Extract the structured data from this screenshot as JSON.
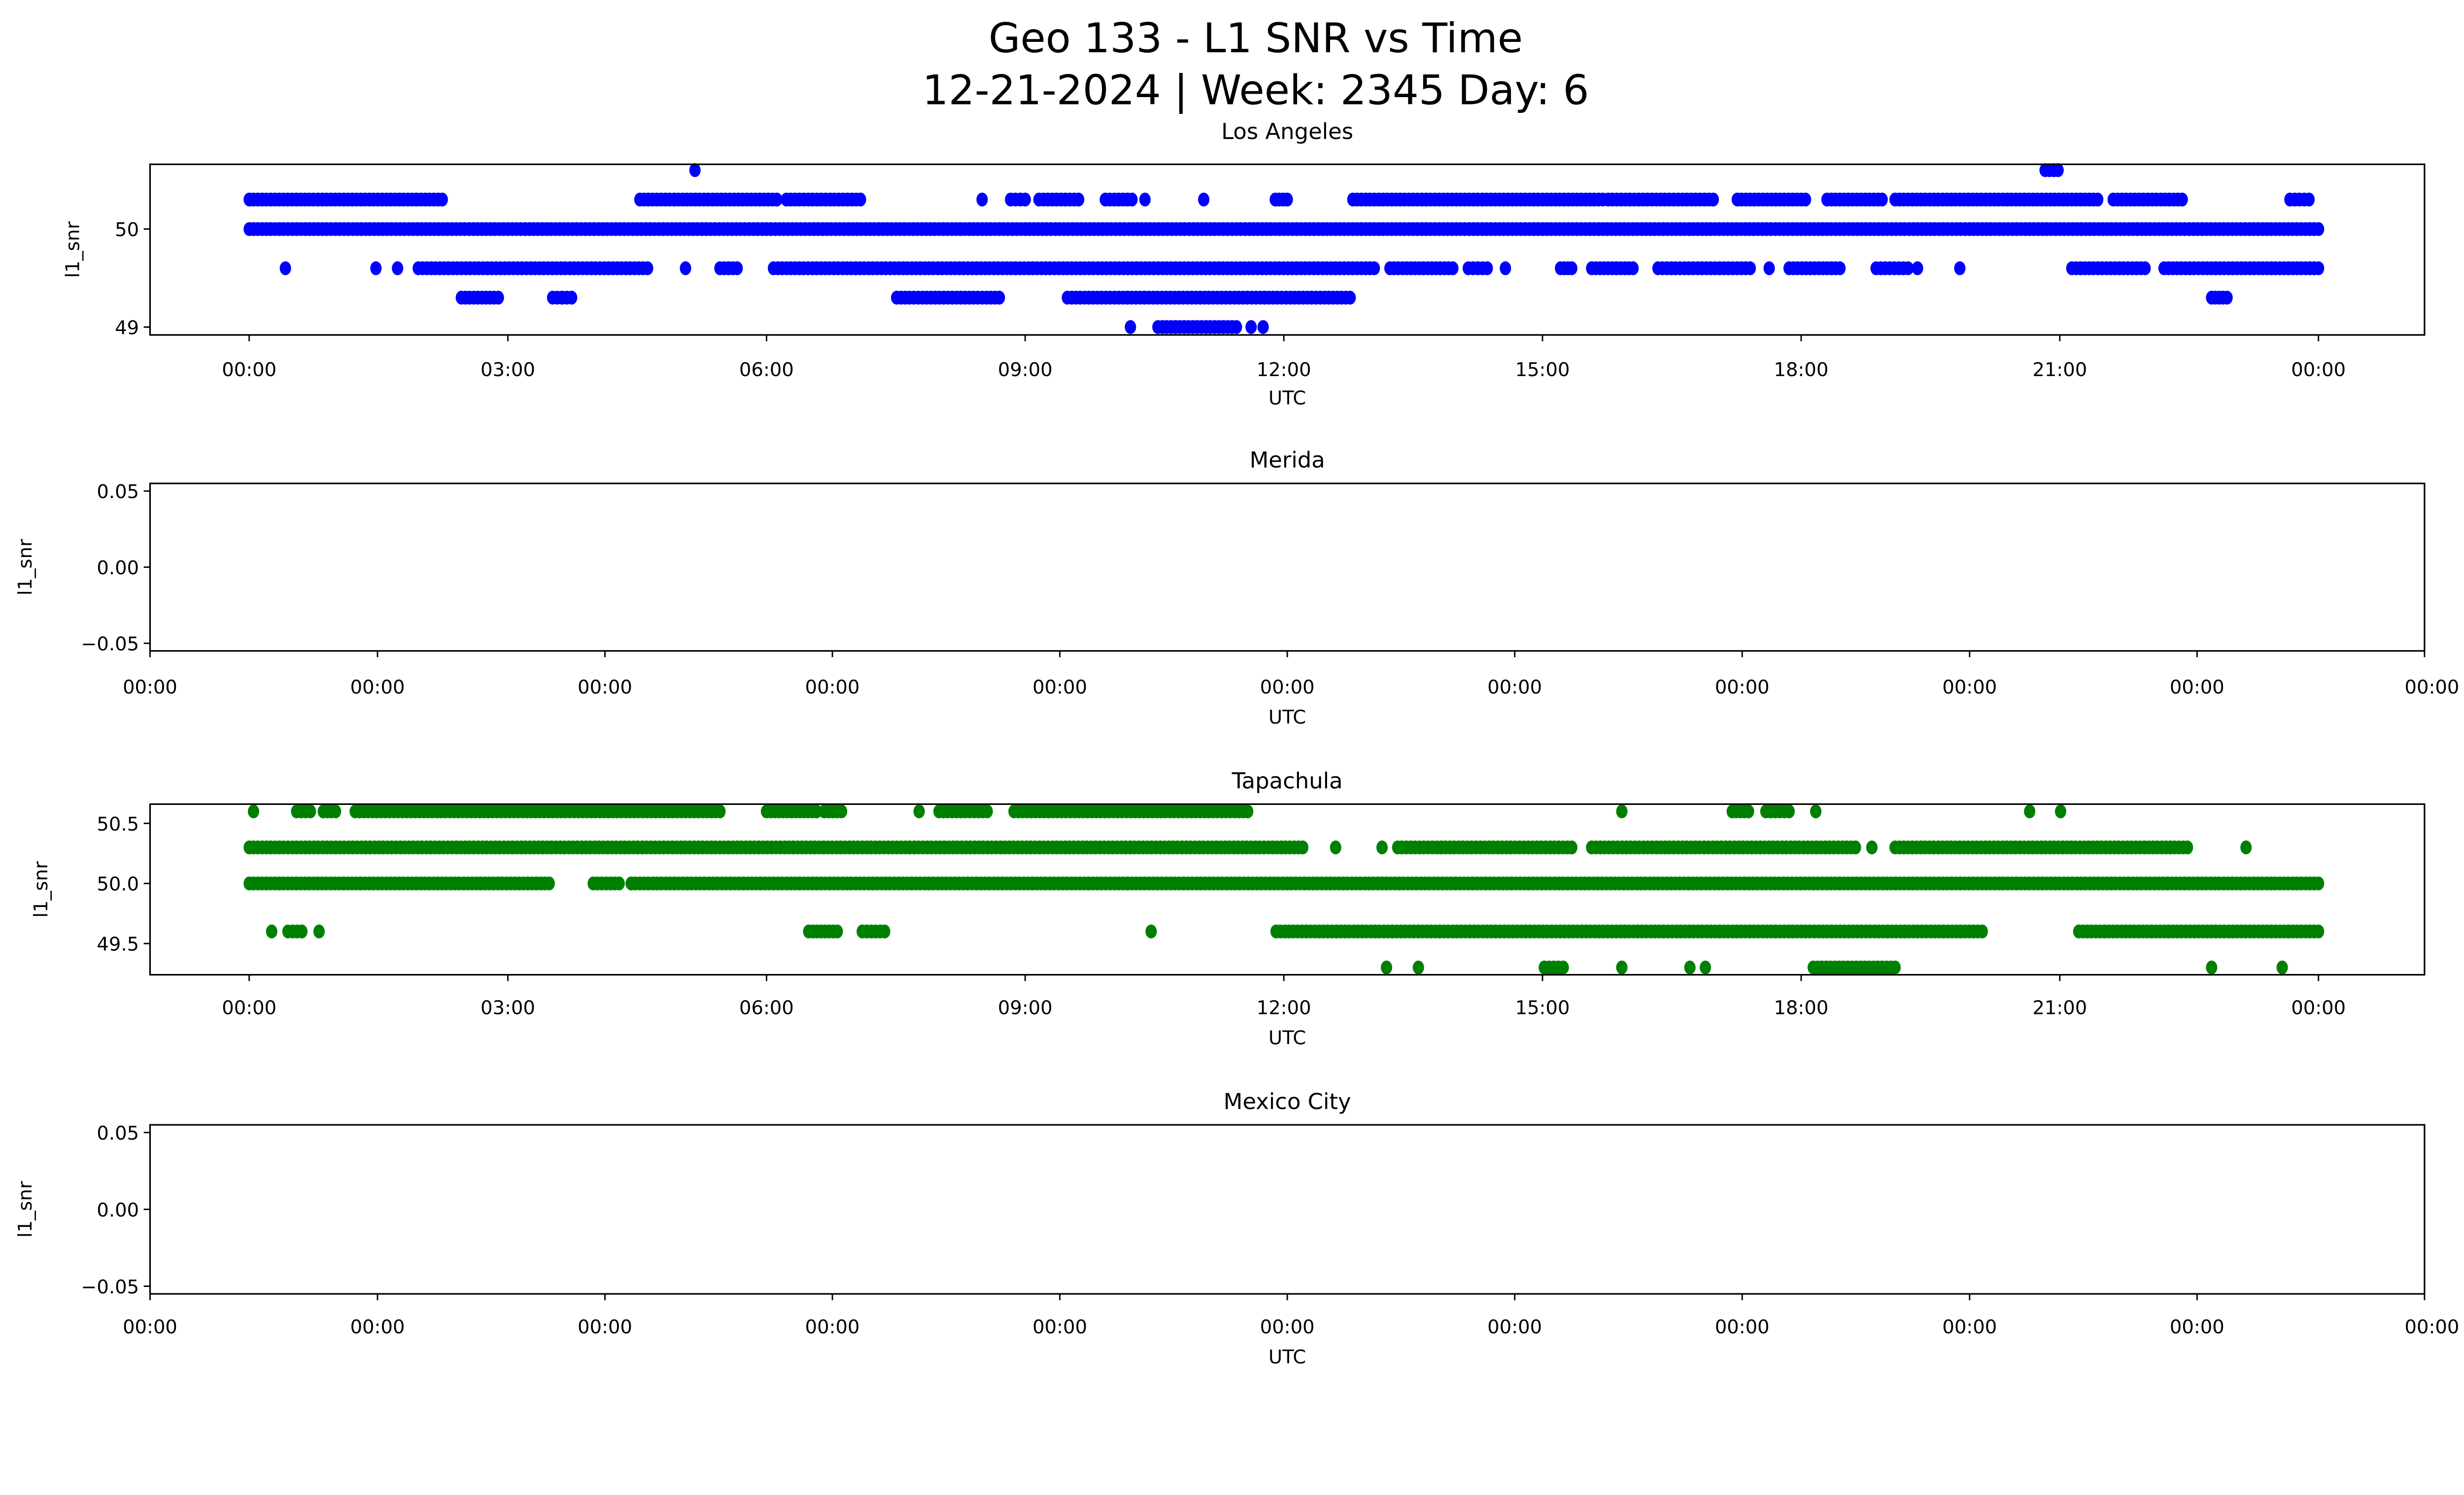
{
  "chart_data": {
    "type": "scatter",
    "title_line1": "Geo 133 - L1 SNR vs Time",
    "title_line2": "12-21-2024 | Week: 2345 Day: 6",
    "x_unit": "hours UTC",
    "subplots": [
      {
        "title": "Los Angeles",
        "xlabel": "UTC",
        "ylabel": "l1_snr",
        "color": "#0000ff",
        "xlim": [
          -1.15,
          25.23
        ],
        "ylim": [
          48.92,
          50.66
        ],
        "xticks": [
          0,
          3,
          6,
          9,
          12,
          15,
          18,
          21,
          24
        ],
        "xtick_labels": [
          "00:00",
          "03:00",
          "06:00",
          "09:00",
          "12:00",
          "15:00",
          "18:00",
          "21:00",
          "00:00"
        ],
        "yticks": [
          49,
          50
        ],
        "ytick_labels": [
          "49",
          "50"
        ],
        "levels": [
          {
            "y": 50.6,
            "runs": [
              [
                5.17,
                5.17
              ],
              [
                20.83,
                20.98
              ]
            ]
          },
          {
            "y": 50.3,
            "runs": [
              [
                0,
                2.24
              ],
              [
                4.53,
                6.12
              ],
              [
                6.23,
                7.09
              ],
              [
                8.5,
                8.5
              ],
              [
                8.83,
                9.0
              ],
              [
                9.16,
                9.62
              ],
              [
                9.93,
                10.24
              ],
              [
                10.39,
                10.39
              ],
              [
                11.07,
                11.07
              ],
              [
                11.9,
                12.04
              ],
              [
                12.8,
                15.7
              ],
              [
                15.76,
                16.98
              ],
              [
                17.26,
                18.05
              ],
              [
                18.3,
                18.94
              ],
              [
                19.09,
                21.44
              ],
              [
                21.62,
                22.42
              ],
              [
                23.67,
                23.89
              ]
            ]
          },
          {
            "y": 50.0,
            "runs": [
              [
                0,
                24
              ]
            ]
          },
          {
            "y": 49.6,
            "runs": [
              [
                0.42,
                0.42
              ],
              [
                1.47,
                1.47
              ],
              [
                1.72,
                1.72
              ],
              [
                1.96,
                4.62
              ],
              [
                5.06,
                5.06
              ],
              [
                5.46,
                5.66
              ],
              [
                6.08,
                13.05
              ],
              [
                13.23,
                13.96
              ],
              [
                14.14,
                14.36
              ],
              [
                14.57,
                14.57
              ],
              [
                15.21,
                15.34
              ],
              [
                15.57,
                16.05
              ],
              [
                16.34,
                17.41
              ],
              [
                17.63,
                17.63
              ],
              [
                17.86,
                18.45
              ],
              [
                18.87,
                19.24
              ],
              [
                19.35,
                19.35
              ],
              [
                19.84,
                19.84
              ],
              [
                21.14,
                21.99
              ],
              [
                22.21,
                24
              ]
            ]
          },
          {
            "y": 49.3,
            "runs": [
              [
                2.46,
                2.89
              ],
              [
                3.52,
                3.74
              ],
              [
                7.51,
                8.7
              ],
              [
                9.49,
                12.77
              ],
              [
                22.76,
                22.94
              ]
            ]
          },
          {
            "y": 49.0,
            "runs": [
              [
                10.22,
                10.22
              ],
              [
                10.54,
                11.45
              ],
              [
                11.62,
                11.62
              ],
              [
                11.76,
                11.76
              ]
            ]
          }
        ]
      },
      {
        "title": "Merida",
        "xlabel": "UTC",
        "ylabel": "l1_snr",
        "color": "#0000ff",
        "empty": true,
        "ylim": [
          -0.055,
          0.055
        ],
        "xtick_labels": [
          "00:00",
          "00:00",
          "00:00",
          "00:00",
          "00:00",
          "00:00",
          "00:00",
          "00:00",
          "00:00",
          "00:00",
          "00:00"
        ],
        "yticks": [
          0.05,
          0.0,
          -0.05
        ],
        "ytick_labels": [
          "0.05",
          "0.00",
          "−0.05"
        ],
        "levels": []
      },
      {
        "title": "Tapachula",
        "xlabel": "UTC",
        "ylabel": "l1_snr",
        "color": "#008000",
        "xlim": [
          -1.15,
          25.23
        ],
        "ylim": [
          49.24,
          50.66
        ],
        "xticks": [
          0,
          3,
          6,
          9,
          12,
          15,
          18,
          21,
          24
        ],
        "xtick_labels": [
          "00:00",
          "03:00",
          "06:00",
          "09:00",
          "12:00",
          "15:00",
          "18:00",
          "21:00",
          "00:00"
        ],
        "yticks": [
          49.5,
          50.0,
          50.5
        ],
        "ytick_labels": [
          "49.5",
          "50.0",
          "50.5"
        ],
        "levels": [
          {
            "y": 50.6,
            "runs": [
              [
                0.05,
                0.05
              ],
              [
                0.55,
                0.71
              ],
              [
                0.86,
                1.0
              ],
              [
                1.23,
                5.46
              ],
              [
                6.0,
                6.58
              ],
              [
                6.67,
                6.87
              ],
              [
                7.77,
                7.77
              ],
              [
                8.0,
                8.56
              ],
              [
                8.87,
                11.58
              ],
              [
                15.92,
                15.92
              ],
              [
                17.2,
                17.39
              ],
              [
                17.59,
                17.86
              ],
              [
                18.17,
                18.17
              ],
              [
                20.65,
                20.65
              ],
              [
                21.01,
                21.01
              ]
            ]
          },
          {
            "y": 50.3,
            "runs": [
              [
                0,
                12.22
              ],
              [
                12.6,
                12.6
              ],
              [
                13.14,
                13.14
              ],
              [
                13.32,
                15.34
              ],
              [
                15.57,
                18.63
              ],
              [
                18.82,
                18.82
              ],
              [
                19.09,
                22.48
              ],
              [
                23.16,
                23.16
              ]
            ]
          },
          {
            "y": 50.0,
            "runs": [
              [
                0,
                3.48
              ],
              [
                3.99,
                4.29
              ],
              [
                4.43,
                24
              ]
            ]
          },
          {
            "y": 49.6,
            "runs": [
              [
                0.26,
                0.26
              ],
              [
                0.45,
                0.61
              ],
              [
                0.81,
                0.81
              ],
              [
                6.49,
                6.82
              ],
              [
                7.11,
                7.37
              ],
              [
                10.46,
                10.46
              ],
              [
                11.91,
                20.1
              ],
              [
                21.22,
                24
              ]
            ]
          },
          {
            "y": 49.3,
            "runs": [
              [
                13.19,
                13.19
              ],
              [
                13.56,
                13.56
              ],
              [
                15.02,
                15.24
              ],
              [
                15.92,
                15.92
              ],
              [
                16.71,
                16.71
              ],
              [
                16.89,
                16.89
              ],
              [
                18.14,
                19.09
              ],
              [
                22.76,
                22.76
              ],
              [
                23.58,
                23.58
              ]
            ]
          }
        ]
      },
      {
        "title": "Mexico City",
        "xlabel": "UTC",
        "ylabel": "l1_snr",
        "color": "#008000",
        "empty": true,
        "ylim": [
          -0.055,
          0.055
        ],
        "xtick_labels": [
          "00:00",
          "00:00",
          "00:00",
          "00:00",
          "00:00",
          "00:00",
          "00:00",
          "00:00",
          "00:00",
          "00:00",
          "00:00"
        ],
        "yticks": [
          0.05,
          0.0,
          -0.05
        ],
        "ytick_labels": [
          "0.05",
          "0.00",
          "−0.05"
        ],
        "levels": []
      }
    ]
  }
}
